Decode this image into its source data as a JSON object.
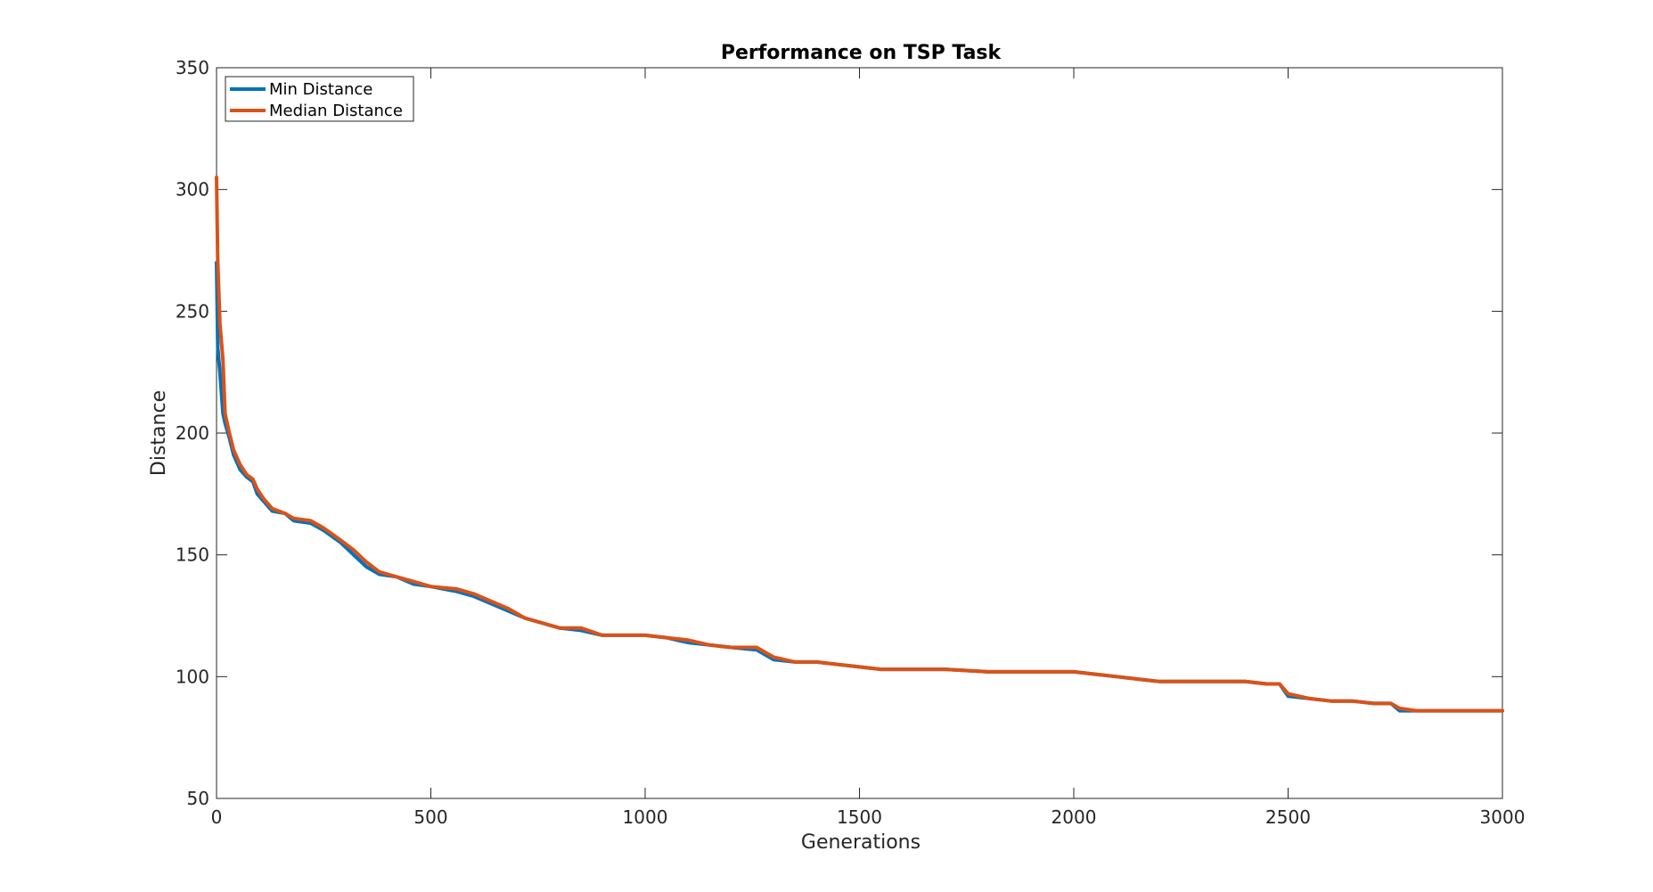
{
  "chart_data": {
    "type": "line",
    "title": "Performance on TSP Task",
    "xlabel": "Generations",
    "ylabel": "Distance",
    "xlim": [
      0,
      3000
    ],
    "ylim": [
      50,
      350
    ],
    "xticks": [
      0,
      500,
      1000,
      1500,
      2000,
      2500,
      3000
    ],
    "yticks": [
      50,
      100,
      150,
      200,
      250,
      300,
      350
    ],
    "xtick_labels": [
      "0",
      "500",
      "1000",
      "1500",
      "2000",
      "2500",
      "3000"
    ],
    "ytick_labels": [
      "50",
      "100",
      "150",
      "200",
      "250",
      "300",
      "350"
    ],
    "grid": false,
    "legend_position": "top-left",
    "series": [
      {
        "name": "Min Distance",
        "color": "#0072BD",
        "x": [
          0,
          3,
          8,
          15,
          20,
          30,
          40,
          55,
          70,
          85,
          95,
          110,
          130,
          160,
          180,
          220,
          250,
          290,
          320,
          350,
          380,
          420,
          460,
          500,
          560,
          600,
          640,
          680,
          720,
          760,
          800,
          850,
          900,
          950,
          1000,
          1050,
          1100,
          1150,
          1200,
          1260,
          1300,
          1350,
          1400,
          1450,
          1500,
          1550,
          1600,
          1700,
          1800,
          1900,
          2000,
          2050,
          2100,
          2150,
          2200,
          2300,
          2400,
          2450,
          2480,
          2500,
          2550,
          2600,
          2650,
          2700,
          2740,
          2760,
          2800,
          2900,
          3000
        ],
        "y": [
          270,
          235,
          225,
          208,
          204,
          198,
          191,
          185,
          182,
          180,
          175,
          172,
          168,
          167,
          164,
          163,
          160,
          155,
          150,
          145,
          142,
          141,
          138,
          137,
          135,
          133,
          130,
          127,
          124,
          122,
          120,
          119,
          117,
          117,
          117,
          116,
          114,
          113,
          112,
          111,
          107,
          106,
          106,
          105,
          104,
          103,
          103,
          103,
          102,
          102,
          102,
          101,
          100,
          99,
          98,
          98,
          98,
          97,
          97,
          92,
          91,
          90,
          90,
          89,
          89,
          86,
          86,
          86,
          86
        ]
      },
      {
        "name": "Median Distance",
        "color": "#D95319",
        "x": [
          0,
          3,
          8,
          15,
          20,
          30,
          40,
          55,
          70,
          85,
          95,
          110,
          130,
          160,
          180,
          220,
          250,
          290,
          320,
          350,
          380,
          420,
          460,
          500,
          560,
          600,
          640,
          680,
          720,
          760,
          800,
          850,
          900,
          950,
          1000,
          1050,
          1100,
          1150,
          1200,
          1260,
          1300,
          1350,
          1400,
          1450,
          1500,
          1550,
          1600,
          1700,
          1800,
          1900,
          2000,
          2050,
          2100,
          2150,
          2200,
          2300,
          2400,
          2450,
          2480,
          2500,
          2550,
          2600,
          2650,
          2700,
          2740,
          2760,
          2800,
          2900,
          3000
        ],
        "y": [
          305,
          270,
          245,
          230,
          208,
          200,
          193,
          187,
          183,
          181,
          177,
          173,
          169,
          167,
          165,
          164,
          161,
          156,
          152,
          147,
          143,
          141,
          139,
          137,
          136,
          134,
          131,
          128,
          124,
          122,
          120,
          120,
          117,
          117,
          117,
          116,
          115,
          113,
          112,
          112,
          108,
          106,
          106,
          105,
          104,
          103,
          103,
          103,
          102,
          102,
          102,
          101,
          100,
          99,
          98,
          98,
          98,
          97,
          97,
          93,
          91,
          90,
          90,
          89,
          89,
          87,
          86,
          86,
          86
        ]
      }
    ]
  }
}
